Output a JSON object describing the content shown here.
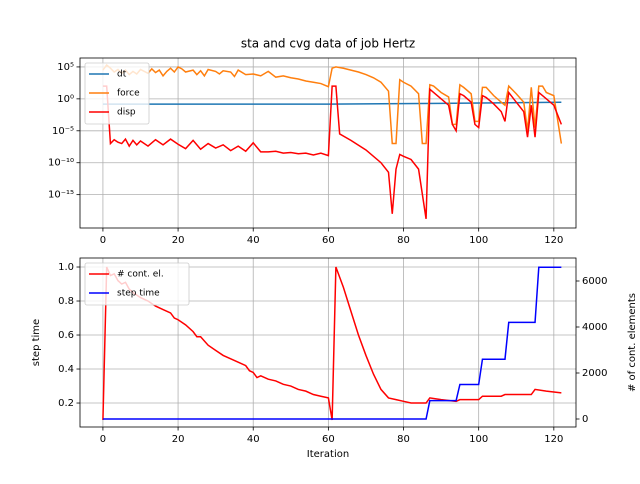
{
  "chart_data": [
    {
      "type": "line",
      "title": "sta and cvg data of job Hertz",
      "log_y": true,
      "grid": true,
      "legend": "upper left",
      "xlim": [
        -6.1,
        125.9
      ],
      "xticks": [
        0,
        20,
        40,
        60,
        80,
        100,
        120
      ],
      "ylim": [
        6e-21,
        2500000.0
      ],
      "yticks": [
        {
          "value": 100000.0,
          "label": "10⁵"
        },
        {
          "value": 1,
          "label": "10⁰"
        },
        {
          "value": 1e-05,
          "label": "10⁻⁵"
        },
        {
          "value": 1e-10,
          "label": "10⁻¹⁰"
        },
        {
          "value": 1e-15,
          "label": "10⁻¹⁵"
        }
      ],
      "series": [
        {
          "name": "dt",
          "color": "#1f77b4",
          "x": [
            0,
            60,
            90,
            122
          ],
          "values": [
            0.15,
            0.15,
            0.2,
            0.3
          ]
        },
        {
          "name": "force",
          "color": "#ff7f0e",
          "x": [
            0,
            1,
            2,
            3,
            4,
            5,
            6,
            7,
            8,
            9,
            10,
            12,
            13,
            14,
            15,
            16,
            17,
            18,
            19,
            20,
            21,
            22,
            24,
            25,
            26,
            27,
            28,
            30,
            31,
            32,
            34,
            35,
            36,
            38,
            40,
            42,
            44,
            46,
            48,
            50,
            52,
            54,
            56,
            58,
            60,
            61,
            62,
            64,
            66,
            68,
            70,
            72,
            74,
            76,
            77,
            78,
            79,
            80,
            82,
            84,
            85,
            86,
            87,
            88,
            90,
            92,
            93,
            94,
            95,
            96,
            98,
            99,
            100,
            101,
            102,
            104,
            106,
            107,
            108,
            110,
            112,
            113,
            114,
            115,
            116,
            117,
            118,
            120,
            122
          ],
          "values": [
            32000.0,
            200000.0,
            63000.0,
            16000.0,
            40000.0,
            10000.0,
            32000.0,
            6300.0,
            20000.0,
            7900.0,
            40000.0,
            10000.0,
            50000.0,
            13000.0,
            32000.0,
            4000.0,
            20000.0,
            63000.0,
            16000.0,
            100000.0,
            50000.0,
            16000.0,
            32000.0,
            6300.0,
            25000.0,
            4000.0,
            40000.0,
            20000.0,
            7900.0,
            25000.0,
            16000.0,
            3200.0,
            32000.0,
            6300.0,
            7900.0,
            4000.0,
            20000.0,
            2500.0,
            4000.0,
            2000.0,
            1300.0,
            630,
            400,
            250,
            80,
            63000.0,
            100000.0,
            63000.0,
            32000.0,
            16000.0,
            6300.0,
            2000.0,
            400,
            16,
            1e-07,
            1e-07,
            1000,
            400,
            100,
            6.3,
            1e-07,
            1e-07,
            160,
            100,
            10,
            2,
            0.0001,
            0.0001,
            160,
            63,
            6.3,
            0.0003,
            0.0003,
            63,
            63,
            3.2,
            0.3,
            0.1,
            100,
            6.3,
            0.3,
            1e-05,
            63,
            3e-05,
            100,
            100,
            10,
            3.2,
            1e-07
          ]
        },
        {
          "name": "disp",
          "color": "#ff0000",
          "x": [
            0,
            1,
            2,
            3,
            4,
            5,
            6,
            7,
            8,
            9,
            10,
            12,
            14,
            16,
            18,
            20,
            22,
            24,
            26,
            28,
            30,
            32,
            34,
            36,
            38,
            40,
            42,
            44,
            46,
            48,
            50,
            52,
            54,
            56,
            58,
            60,
            61,
            62,
            63,
            66,
            70,
            74,
            76,
            77,
            78,
            79,
            80,
            82,
            84,
            86,
            87,
            88,
            90,
            92,
            93,
            94,
            95,
            96,
            98,
            99,
            100,
            101,
            102,
            104,
            106,
            107,
            108,
            110,
            112,
            113,
            114,
            115,
            116,
            118,
            120,
            122
          ],
          "values": [
            100,
            100,
            1e-07,
            4e-07,
            1.6e-07,
            1e-07,
            5e-07,
            4e-08,
            3.2e-07,
            6.3e-08,
            2.5e-07,
            4e-08,
            4e-07,
            6.3e-08,
            5e-07,
            7.9e-08,
            1.6e-08,
            3.2e-07,
            1.3e-08,
            1e-07,
            2e-08,
            6.3e-08,
            7.9e-09,
            4e-08,
            6.3e-09,
            1.3e-07,
            5e-09,
            5e-09,
            6.3e-09,
            3.2e-09,
            4e-09,
            2.5e-09,
            3.2e-09,
            1.6e-09,
            3.2e-09,
            1.3e-09,
            100,
            100,
            3.2e-06,
            3.2e-07,
            1e-08,
            1e-10,
            3.2e-12,
            1e-18,
            1e-11,
            2e-09,
            1e-09,
            3.2e-10,
            1e-11,
            1.6e-19,
            32,
            10,
            1,
            0.1,
            0.0001,
            1e-05,
            6.3,
            3.2,
            0.3,
            0.0001,
            3.2e-05,
            3.2,
            1.6,
            0.16,
            0.01,
            0.0003,
            10,
            0.3,
            0.01,
            1e-06,
            0.1,
            1e-06,
            10,
            1,
            0.1,
            0.0001
          ]
        }
      ]
    },
    {
      "type": "line",
      "grid": true,
      "legend": "upper left",
      "xlabel": "Iteration",
      "ylabel": "step time",
      "y2label": "# of cont. elements",
      "xlim": [
        -6.1,
        125.9
      ],
      "xticks": [
        0,
        20,
        40,
        60,
        80,
        100,
        120
      ],
      "ylim": [
        0.059,
        1.053
      ],
      "yticks": [
        0.2,
        0.4,
        0.6,
        0.8,
        {
          "value": 1,
          "label": "1.0"
        }
      ],
      "y2lim": [
        -348,
        7000
      ],
      "y2ticks": [
        0,
        2000,
        4000,
        6000
      ],
      "series": [
        {
          "name": "# cont. el.",
          "color": "#ff0000",
          "x": [
            0,
            1,
            2,
            3,
            4,
            5,
            6,
            7,
            8,
            10,
            12,
            14,
            16,
            18,
            19,
            20,
            22,
            24,
            25,
            26,
            28,
            30,
            32,
            34,
            36,
            38,
            39,
            40,
            41,
            42,
            44,
            46,
            48,
            50,
            52,
            54,
            56,
            58,
            60,
            61,
            62,
            64,
            66,
            68,
            70,
            72,
            74,
            76,
            78,
            80,
            82,
            86,
            87,
            90,
            94,
            95,
            100,
            101,
            106,
            107,
            114,
            115,
            118,
            122
          ],
          "values": [
            0.1,
            1.0,
            0.95,
            0.96,
            0.92,
            0.9,
            0.91,
            0.87,
            0.85,
            0.82,
            0.8,
            0.77,
            0.75,
            0.73,
            0.7,
            0.69,
            0.66,
            0.62,
            0.59,
            0.59,
            0.54,
            0.51,
            0.48,
            0.46,
            0.44,
            0.42,
            0.39,
            0.38,
            0.35,
            0.36,
            0.34,
            0.33,
            0.31,
            0.3,
            0.28,
            0.27,
            0.25,
            0.24,
            0.23,
            0.1,
            1.0,
            0.88,
            0.74,
            0.6,
            0.48,
            0.37,
            0.28,
            0.23,
            0.22,
            0.21,
            0.2,
            0.2,
            0.23,
            0.22,
            0.21,
            0.22,
            0.22,
            0.24,
            0.24,
            0.25,
            0.25,
            0.28,
            0.27,
            0.26
          ]
        },
        {
          "name": "step time",
          "color": "#0000ff",
          "axis": "y2",
          "x": [
            0,
            86,
            87,
            94,
            95,
            100,
            101,
            107,
            108,
            115,
            116,
            122
          ],
          "values": [
            0,
            0,
            800,
            800,
            1500,
            1500,
            2600,
            2600,
            4200,
            4200,
            6600,
            6600
          ]
        }
      ]
    }
  ]
}
